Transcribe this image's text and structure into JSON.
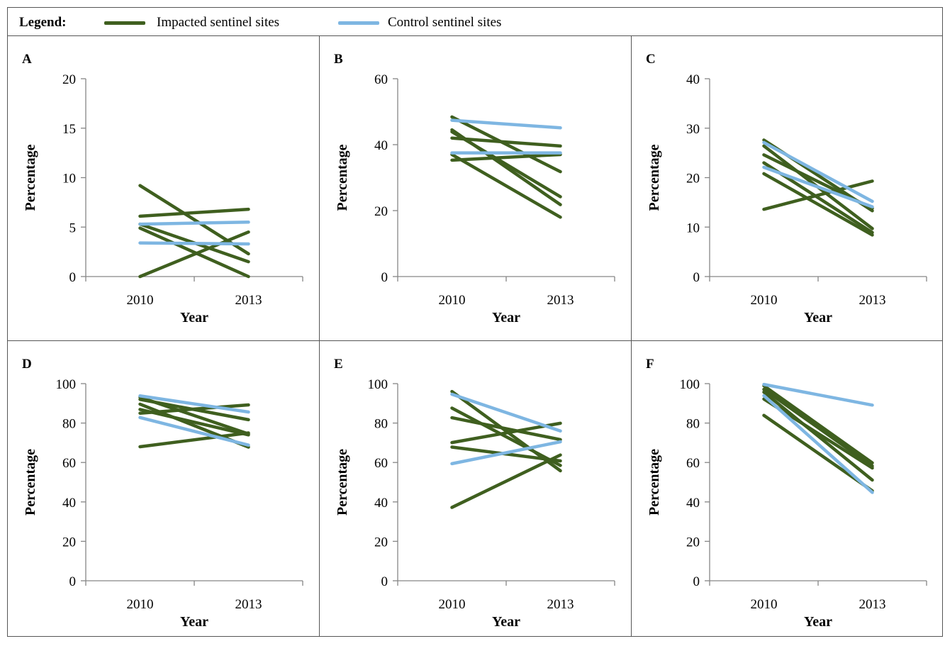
{
  "legend": {
    "title": "Legend:",
    "impacted_label": "Impacted sentinel sites",
    "control_label": "Control sentinel sites",
    "impacted_color": "#3f5f1f",
    "control_color": "#7eb6e2"
  },
  "chart_data": [
    {
      "panel": "A",
      "type": "line",
      "x": [
        "2010",
        "2013"
      ],
      "xlabel": "Year",
      "ylabel": "Percentage",
      "ylim": [
        0,
        20
      ],
      "yticks": [
        0,
        5,
        10,
        15,
        20
      ],
      "series": [
        {
          "group": "impacted",
          "values": [
            9.2,
            2.3
          ]
        },
        {
          "group": "impacted",
          "values": [
            6.1,
            6.8
          ]
        },
        {
          "group": "impacted",
          "values": [
            5.3,
            1.5
          ]
        },
        {
          "group": "impacted",
          "values": [
            4.9,
            0.0
          ]
        },
        {
          "group": "impacted",
          "values": [
            0.0,
            4.5
          ]
        },
        {
          "group": "control",
          "values": [
            5.3,
            5.5
          ]
        },
        {
          "group": "control",
          "values": [
            3.4,
            3.3
          ]
        }
      ]
    },
    {
      "panel": "B",
      "type": "line",
      "x": [
        "2010",
        "2013"
      ],
      "xlabel": "Year",
      "ylabel": "Percentage",
      "ylim": [
        0,
        60
      ],
      "yticks": [
        0,
        20,
        40,
        60
      ],
      "series": [
        {
          "group": "impacted",
          "values": [
            48.4,
            31.8
          ]
        },
        {
          "group": "impacted",
          "values": [
            44.5,
            21.8
          ]
        },
        {
          "group": "impacted",
          "values": [
            43.9,
            24.2
          ]
        },
        {
          "group": "impacted",
          "values": [
            42.0,
            39.6
          ]
        },
        {
          "group": "impacted",
          "values": [
            37.0,
            18.0
          ]
        },
        {
          "group": "impacted",
          "values": [
            35.3,
            37.0
          ]
        },
        {
          "group": "control",
          "values": [
            47.4,
            45.1
          ]
        },
        {
          "group": "control",
          "values": [
            37.5,
            37.5
          ]
        }
      ]
    },
    {
      "panel": "C",
      "type": "line",
      "x": [
        "2010",
        "2013"
      ],
      "xlabel": "Year",
      "ylabel": "Percentage",
      "ylim": [
        0,
        40
      ],
      "yticks": [
        0,
        10,
        20,
        30,
        40
      ],
      "series": [
        {
          "group": "impacted",
          "values": [
            27.6,
            13.3
          ]
        },
        {
          "group": "impacted",
          "values": [
            26.4,
            9.7
          ]
        },
        {
          "group": "impacted",
          "values": [
            24.6,
            13.8
          ]
        },
        {
          "group": "impacted",
          "values": [
            23.0,
            8.9
          ]
        },
        {
          "group": "impacted",
          "values": [
            20.8,
            8.4
          ]
        },
        {
          "group": "impacted",
          "values": [
            13.6,
            19.3
          ]
        },
        {
          "group": "control",
          "values": [
            27.1,
            15.2
          ]
        },
        {
          "group": "control",
          "values": [
            22.1,
            14.1
          ]
        }
      ]
    },
    {
      "panel": "D",
      "type": "line",
      "x": [
        "2010",
        "2013"
      ],
      "xlabel": "Year",
      "ylabel": "Percentage",
      "ylim": [
        0,
        100
      ],
      "yticks": [
        0,
        20,
        40,
        60,
        80,
        100
      ],
      "series": [
        {
          "group": "impacted",
          "values": [
            93.1,
            74.5
          ]
        },
        {
          "group": "impacted",
          "values": [
            92.0,
            81.7
          ]
        },
        {
          "group": "impacted",
          "values": [
            89.6,
            67.8
          ]
        },
        {
          "group": "impacted",
          "values": [
            86.9,
            74.0
          ]
        },
        {
          "group": "impacted",
          "values": [
            85.0,
            89.2
          ]
        },
        {
          "group": "impacted",
          "values": [
            68.0,
            75.0
          ]
        },
        {
          "group": "control",
          "values": [
            93.8,
            85.6
          ]
        },
        {
          "group": "control",
          "values": [
            82.8,
            68.8
          ]
        }
      ]
    },
    {
      "panel": "E",
      "type": "line",
      "x": [
        "2010",
        "2013"
      ],
      "xlabel": "Year",
      "ylabel": "Percentage",
      "ylim": [
        0,
        100
      ],
      "yticks": [
        0,
        20,
        40,
        60,
        80,
        100
      ],
      "series": [
        {
          "group": "impacted",
          "values": [
            96.0,
            55.8
          ]
        },
        {
          "group": "impacted",
          "values": [
            87.6,
            58.5
          ]
        },
        {
          "group": "impacted",
          "values": [
            82.7,
            71.6
          ]
        },
        {
          "group": "impacted",
          "values": [
            70.1,
            79.9
          ]
        },
        {
          "group": "impacted",
          "values": [
            67.8,
            60.8
          ]
        },
        {
          "group": "impacted",
          "values": [
            37.2,
            63.8
          ]
        },
        {
          "group": "control",
          "values": [
            94.6,
            76.0
          ]
        },
        {
          "group": "control",
          "values": [
            59.4,
            70.5
          ]
        }
      ]
    },
    {
      "panel": "F",
      "type": "line",
      "x": [
        "2010",
        "2013"
      ],
      "xlabel": "Year",
      "ylabel": "Percentage",
      "ylim": [
        0,
        100
      ],
      "yticks": [
        0,
        20,
        40,
        60,
        80,
        100
      ],
      "series": [
        {
          "group": "impacted",
          "values": [
            98.9,
            59.8
          ]
        },
        {
          "group": "impacted",
          "values": [
            97.1,
            58.2
          ]
        },
        {
          "group": "impacted",
          "values": [
            95.7,
            51.1
          ]
        },
        {
          "group": "impacted",
          "values": [
            92.2,
            57.2
          ]
        },
        {
          "group": "impacted",
          "values": [
            83.9,
            45.6
          ]
        },
        {
          "group": "control",
          "values": [
            99.6,
            89.1
          ]
        },
        {
          "group": "control",
          "values": [
            93.9,
            44.8
          ]
        }
      ]
    }
  ]
}
